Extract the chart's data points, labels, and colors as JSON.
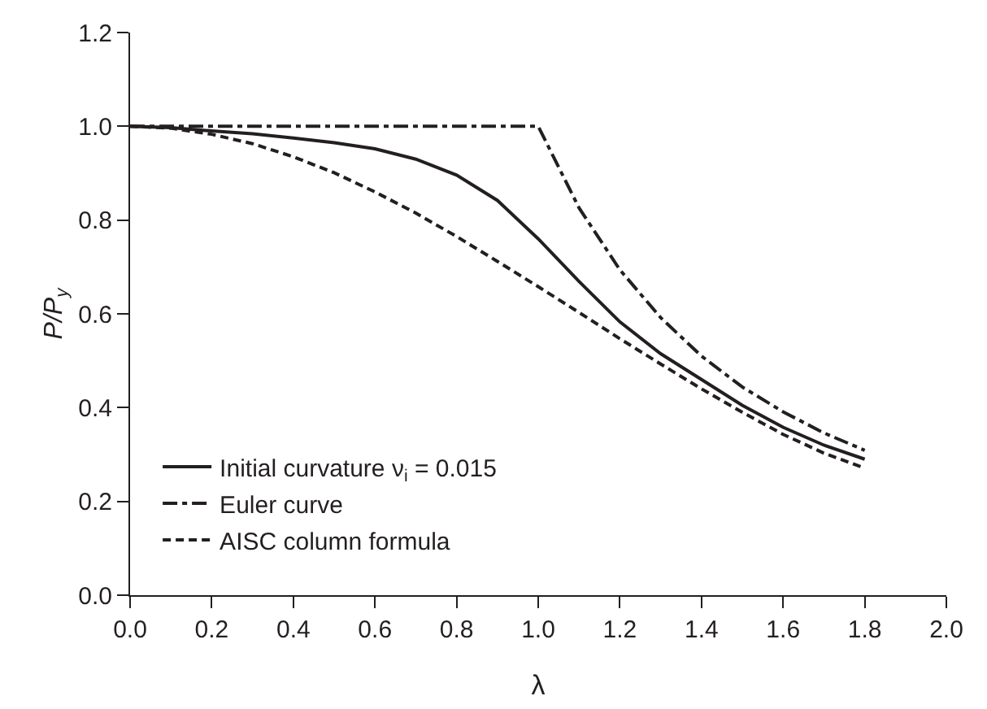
{
  "chart_data": {
    "type": "line",
    "xlabel": "λ",
    "ylabel": "P/P$_{y}$",
    "xlim": [
      0,
      2.0
    ],
    "ylim": [
      0,
      1.2
    ],
    "xticks": [
      {
        "value": 0,
        "label": "0.0"
      },
      {
        "value": 0.2,
        "label": "0.2"
      },
      {
        "value": 0.4,
        "label": "0.4"
      },
      {
        "value": 0.6,
        "label": "0.6"
      },
      {
        "value": 0.8,
        "label": "0.8"
      },
      {
        "value": 1.0,
        "label": "1.0"
      },
      {
        "value": 1.2,
        "label": "1.2"
      },
      {
        "value": 1.4,
        "label": "1.4"
      },
      {
        "value": 1.6,
        "label": "1.6"
      },
      {
        "value": 1.8,
        "label": "1.8"
      },
      {
        "value": 2.0,
        "label": "2.0"
      }
    ],
    "yticks": [
      {
        "value": 0,
        "label": "0.0"
      },
      {
        "value": 0.2,
        "label": "0.2"
      },
      {
        "value": 0.4,
        "label": "0.4"
      },
      {
        "value": 0.6,
        "label": "0.6"
      },
      {
        "value": 0.8,
        "label": "0.8"
      },
      {
        "value": 1.0,
        "label": "1.0"
      },
      {
        "value": 1.2,
        "label": "1.2"
      }
    ],
    "grid": false,
    "legend": "bottom left",
    "marker": "none",
    "series": [
      {
        "name": "Initial curvature ν$_{i}$ = 0.015",
        "color": "#231f20",
        "line_style": "solid",
        "x": [
          0,
          0.1,
          0.2,
          0.3,
          0.4,
          0.5,
          0.6,
          0.7,
          0.8,
          0.9,
          1.0,
          1.1,
          1.2,
          1.3,
          1.4,
          1.5,
          1.6,
          1.7,
          1.8
        ],
        "values": [
          1,
          0.997,
          0.99,
          0.984,
          0.975,
          0.965,
          0.952,
          0.93,
          0.896,
          0.842,
          0.76,
          0.669,
          0.583,
          0.515,
          0.46,
          0.405,
          0.358,
          0.32,
          0.29
        ]
      },
      {
        "name": "Euler curve",
        "color": "#231f20",
        "line_style": "dashdot",
        "x": [
          0,
          1.0,
          1.1,
          1.2,
          1.3,
          1.4,
          1.5,
          1.6,
          1.7,
          1.8
        ],
        "values": [
          1,
          1,
          0.826,
          0.694,
          0.592,
          0.51,
          0.444,
          0.391,
          0.346,
          0.309
        ]
      },
      {
        "name": "AISC column formula",
        "color": "#231f20",
        "line_style": "dashed",
        "x": [
          0,
          0.1,
          0.2,
          0.3,
          0.4,
          0.5,
          0.6,
          0.7,
          0.8,
          0.9,
          1.0,
          1.1,
          1.2,
          1.3,
          1.4,
          1.5,
          1.6,
          1.7,
          1.8
        ],
        "values": [
          1,
          0.996,
          0.983,
          0.963,
          0.935,
          0.901,
          0.86,
          0.815,
          0.765,
          0.712,
          0.658,
          0.603,
          0.547,
          0.493,
          0.44,
          0.39,
          0.343,
          0.303,
          0.271
        ]
      }
    ]
  }
}
